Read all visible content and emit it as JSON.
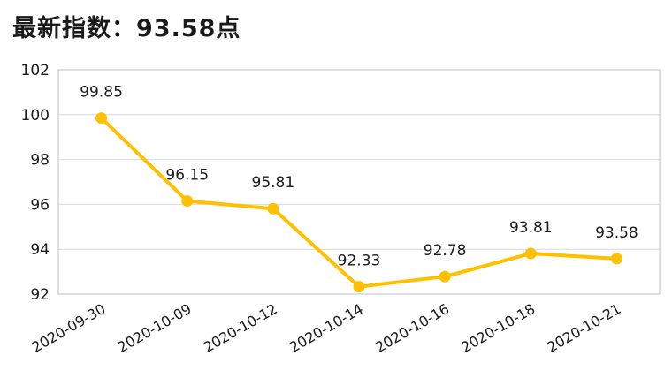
{
  "header": {
    "title": "最新指数：93.58点"
  },
  "chart_data": {
    "type": "line",
    "categories": [
      "2020-09-30",
      "2020-10-09",
      "2020-10-12",
      "2020-10-14",
      "2020-10-16",
      "2020-10-18",
      "2020-10-21"
    ],
    "series": [
      {
        "values": [
          99.85,
          96.15,
          95.81,
          92.33,
          92.78,
          93.81,
          93.58
        ],
        "data_labels": [
          "99.85",
          "96.15",
          "95.81",
          "92.33",
          "92.78",
          "93.81",
          "93.58"
        ]
      }
    ],
    "ylim": [
      92,
      102
    ],
    "yticks": [
      92,
      94,
      96,
      98,
      100,
      102
    ],
    "ytick_labels": [
      "92",
      "94",
      "96",
      "98",
      "100",
      "102"
    ],
    "grid": true,
    "legend": "none",
    "colors": {
      "line": "#FFC000",
      "grid": "#D9D9D9",
      "frame": "#BFBFBF"
    }
  }
}
